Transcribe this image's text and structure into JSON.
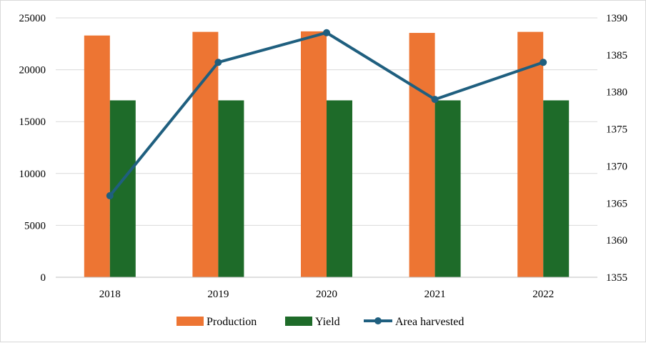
{
  "chart_data": {
    "type": "bar",
    "categories": [
      "2018",
      "2019",
      "2020",
      "2021",
      "2022"
    ],
    "series": [
      {
        "name": "Production",
        "kind": "bar",
        "axis": "left",
        "color": "#ed7533",
        "values": [
          23300,
          23650,
          23700,
          23550,
          23650
        ]
      },
      {
        "name": "Yield",
        "kind": "bar",
        "axis": "left",
        "color": "#1e6b29",
        "values": [
          17050,
          17050,
          17050,
          17050,
          17050
        ]
      },
      {
        "name": "Area harvested",
        "kind": "line",
        "axis": "right",
        "color": "#1f5f7f",
        "values": [
          1366,
          1384,
          1388,
          1379,
          1384
        ]
      }
    ],
    "y_left": {
      "ylim": [
        0,
        25000
      ],
      "ticks": [
        "0",
        "5000",
        "10000",
        "15000",
        "20000",
        "25000"
      ]
    },
    "y_right": {
      "ylim": [
        1355,
        1390
      ],
      "ticks": [
        "1355",
        "1360",
        "1365",
        "1370",
        "1375",
        "1380",
        "1385",
        "1390"
      ]
    },
    "title": "",
    "xlabel": "",
    "ylabel": "",
    "grid": true,
    "legend_position": "bottom"
  }
}
